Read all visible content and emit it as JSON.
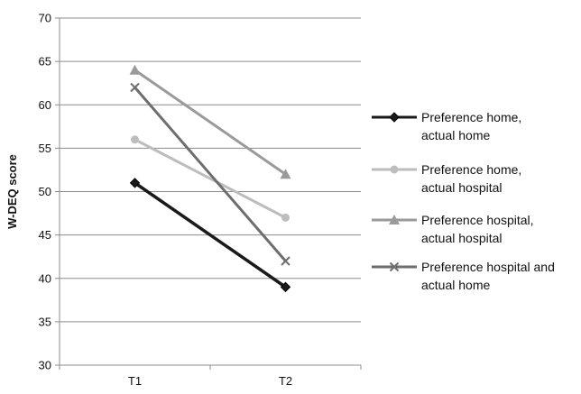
{
  "chart_data": {
    "type": "line",
    "categories": [
      "T1",
      "T2"
    ],
    "ylabel": "W-DEQ score",
    "ylim": [
      30,
      70
    ],
    "yticks": [
      30,
      35,
      40,
      45,
      50,
      55,
      60,
      65,
      70
    ],
    "grid": "horizontal",
    "legend_position": "right",
    "series": [
      {
        "name": "Preference home, actual home",
        "legend_lines": [
          "Preference home,",
          "actual home"
        ],
        "values": [
          51,
          39
        ],
        "color": "#1a1a1a",
        "marker": "diamond"
      },
      {
        "name": "Preference home, actual hospital",
        "legend_lines": [
          "Preference home,",
          "actual hospital"
        ],
        "values": [
          56,
          47
        ],
        "color": "#bdbdbd",
        "marker": "circle"
      },
      {
        "name": "Preference hospital, actual hospital",
        "legend_lines": [
          "Preference hospital,",
          "actual hospital"
        ],
        "values": [
          64,
          52
        ],
        "color": "#9a9a9a",
        "marker": "triangle"
      },
      {
        "name": "Preference hospital and actual home",
        "legend_lines": [
          "Preference hospital and",
          "actual home"
        ],
        "values": [
          62,
          42
        ],
        "color": "#6e6e6e",
        "marker": "x"
      }
    ]
  }
}
